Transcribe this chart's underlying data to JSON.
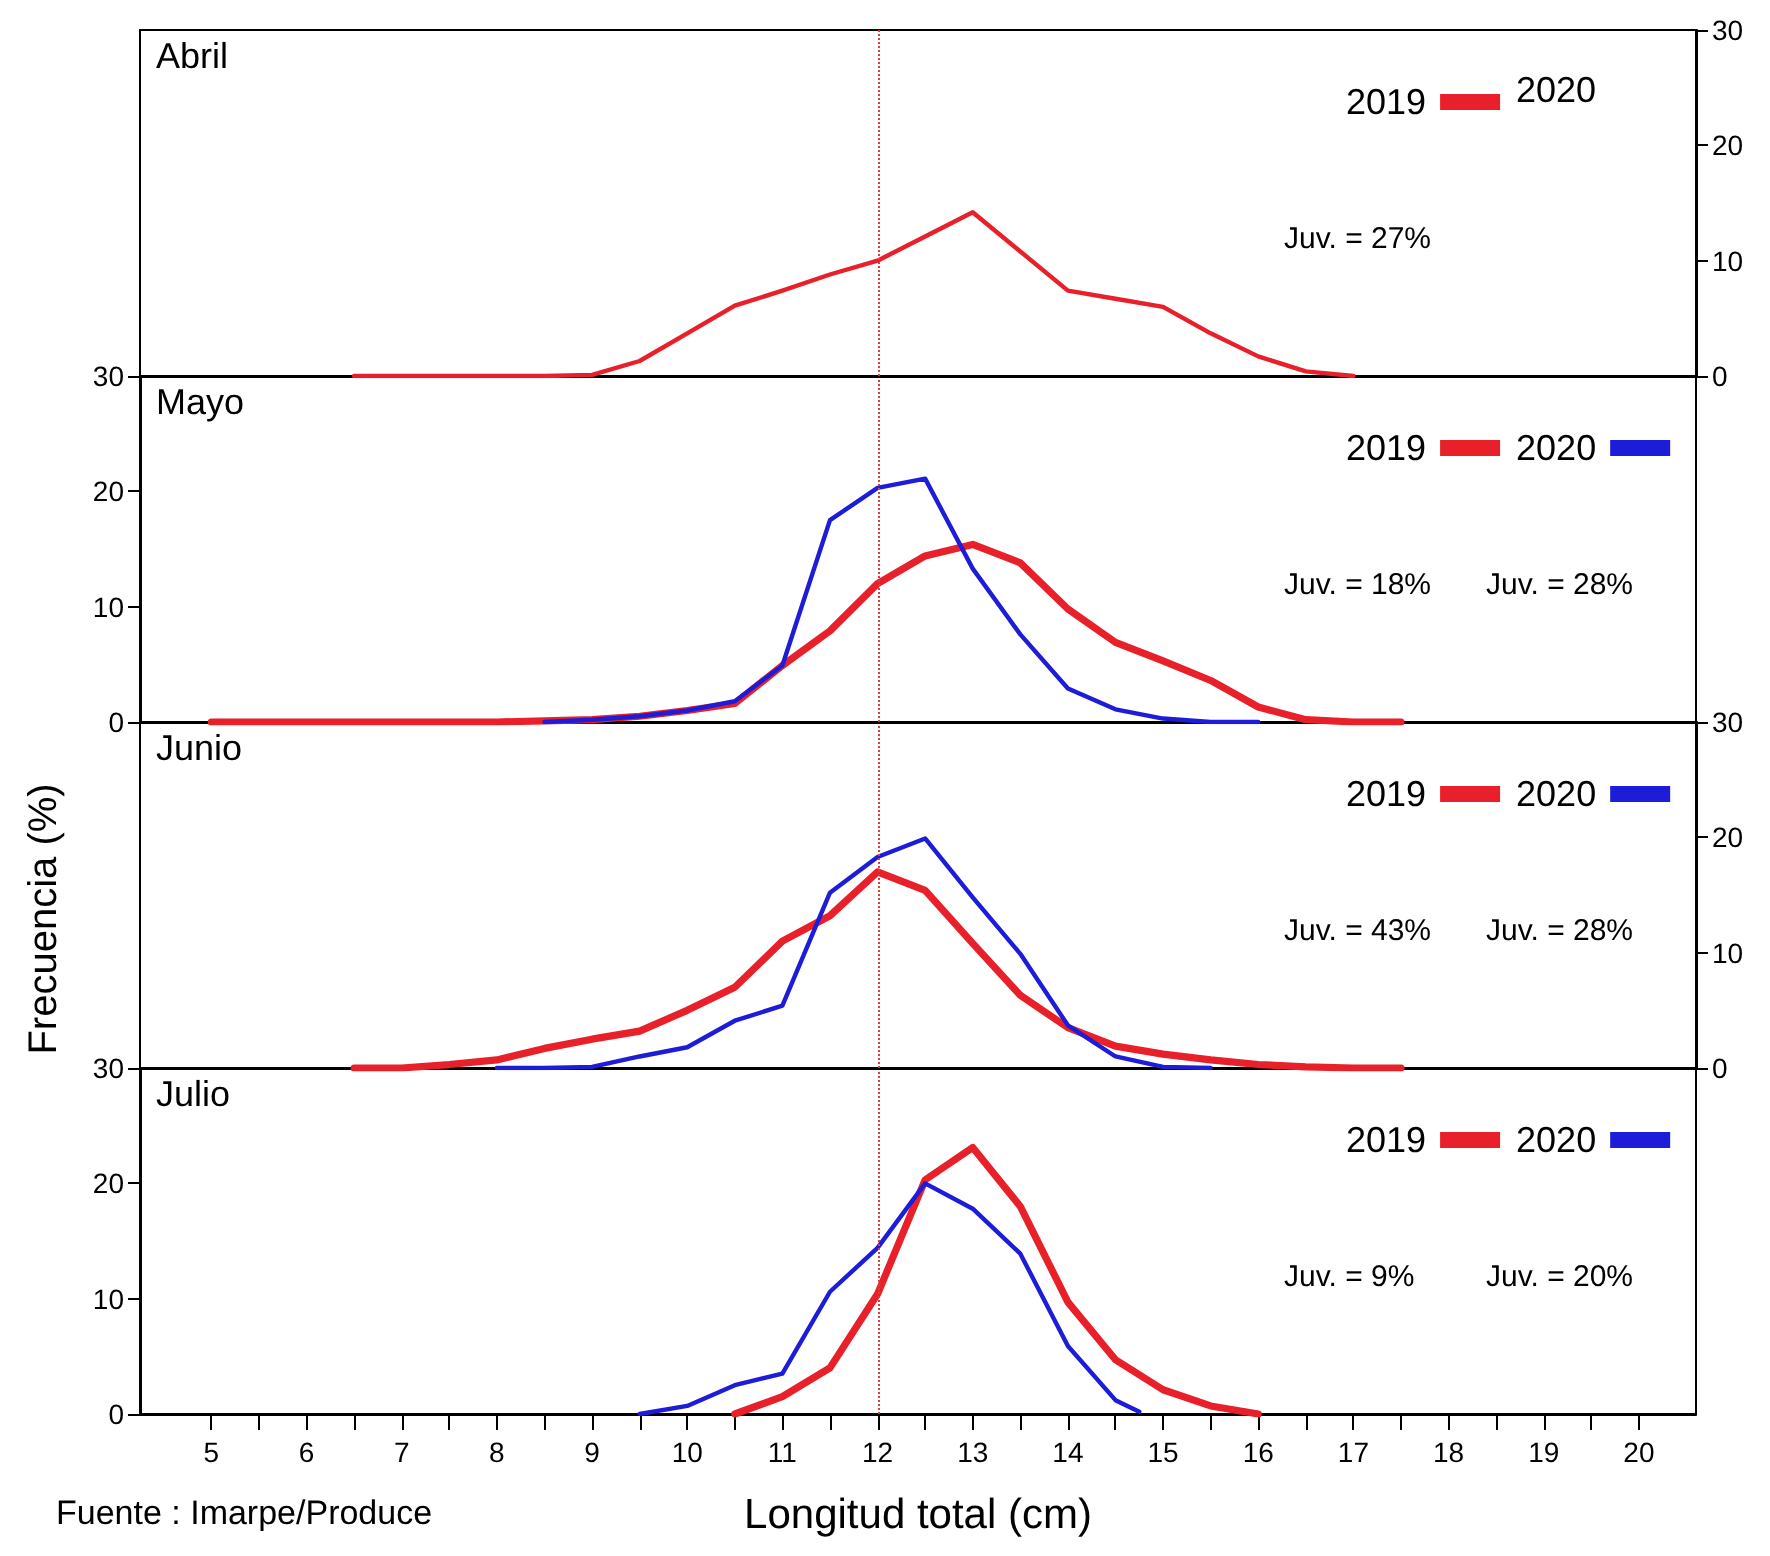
{
  "chart_data": [
    {
      "type": "line",
      "title": "Abril",
      "xlim": [
        4.25,
        20.6
      ],
      "ylim": [
        0,
        30
      ],
      "yticks": [
        0,
        10,
        20,
        30
      ],
      "tick_labels": "y",
      "grid": false,
      "legend": "top right",
      "marker": "none",
      "line_style": "solid",
      "series": [
        {
          "name": "2019",
          "color": "#e8202a",
          "x": [
            6.5,
            7,
            7.5,
            8,
            8.5,
            9,
            9.5,
            10,
            10.5,
            11,
            11.5,
            12,
            12.5,
            13,
            13.5,
            14,
            14.5,
            15,
            15.5,
            16,
            16.5,
            17
          ],
          "values": [
            0,
            0,
            0,
            0,
            0,
            0.1,
            1.3,
            3.7,
            6.1,
            7.4,
            8.8,
            10.0,
            12.1,
            14.2,
            10.8,
            7.4,
            6.7,
            6.0,
            3.7,
            1.7,
            0.4,
            0
          ]
        }
      ],
      "ref_lines": [
        {
          "axis": "x",
          "value": 12,
          "color": "#e03a3a",
          "line_style": "dotted"
        }
      ],
      "annotations": [
        "Juv. = 27%",
        "2020"
      ]
    },
    {
      "type": "line",
      "title": "Mayo",
      "xlim": [
        4.25,
        20.6
      ],
      "ylim": [
        0,
        30
      ],
      "yticks": [
        0,
        10,
        20,
        30
      ],
      "tick_labels": "y",
      "grid": false,
      "legend": "top right",
      "marker": "none",
      "line_style": "solid",
      "series": [
        {
          "name": "2019",
          "color": "#e8202a",
          "x": [
            5,
            5.5,
            6,
            6.5,
            7,
            7.5,
            8,
            8.5,
            9,
            9.5,
            10,
            10.5,
            11,
            11.5,
            12,
            12.5,
            13,
            13.5,
            14,
            14.5,
            15,
            15.5,
            16,
            16.5,
            17,
            17.5
          ],
          "values": [
            0,
            0,
            0,
            0,
            0,
            0,
            0,
            0.1,
            0.2,
            0.5,
            1.0,
            1.6,
            4.9,
            7.9,
            12.0,
            14.4,
            15.4,
            13.8,
            9.8,
            6.9,
            5.3,
            3.6,
            1.3,
            0.2,
            0,
            0
          ]
        },
        {
          "name": "2020",
          "color": "#1c1cd9",
          "x": [
            8.5,
            9,
            9.5,
            10,
            10.5,
            11,
            11.5,
            12,
            12.5,
            13,
            13.5,
            14,
            14.5,
            15,
            15.5,
            16
          ],
          "values": [
            0,
            0.2,
            0.5,
            1.0,
            1.8,
            4.9,
            17.5,
            20.3,
            21.1,
            13.3,
            7.6,
            2.9,
            1.1,
            0.3,
            0,
            0
          ]
        }
      ],
      "ref_lines": [
        {
          "axis": "x",
          "value": 12,
          "color": "#e03a3a",
          "line_style": "dotted"
        }
      ],
      "annotations": [
        "Juv. = 18%",
        "Juv. = 28%"
      ]
    },
    {
      "type": "line",
      "title": "Junio",
      "ylabel": "Frecuencia (%)",
      "xlim": [
        4.25,
        20.6
      ],
      "ylim": [
        0,
        30
      ],
      "yticks": [
        0,
        10,
        20,
        30
      ],
      "tick_labels": "y",
      "grid": false,
      "legend": "top right",
      "marker": "none",
      "line_style": "solid",
      "series": [
        {
          "name": "2019",
          "color": "#e8202a",
          "x": [
            6.5,
            7,
            7.5,
            8,
            8.5,
            9,
            9.5,
            10,
            10.5,
            11,
            11.5,
            12,
            12.5,
            13,
            13.5,
            14,
            14.5,
            15,
            15.5,
            16,
            16.5,
            17,
            17.5
          ],
          "values": [
            0,
            0,
            0.3,
            0.7,
            1.7,
            2.5,
            3.2,
            5.0,
            7.0,
            11.0,
            13.2,
            17.0,
            15.4,
            10.8,
            6.3,
            3.5,
            1.9,
            1.2,
            0.7,
            0.3,
            0.1,
            0,
            0
          ]
        },
        {
          "name": "2020",
          "color": "#1c1cd9",
          "x": [
            8,
            8.5,
            9,
            9.5,
            10,
            10.5,
            11,
            11.5,
            12,
            12.5,
            13,
            13.5,
            14,
            14.5,
            15,
            15.5
          ],
          "values": [
            0,
            0,
            0.1,
            1.0,
            1.8,
            4.1,
            5.4,
            15.2,
            18.3,
            19.9,
            14.8,
            9.9,
            3.7,
            1.0,
            0.1,
            0
          ]
        }
      ],
      "ref_lines": [
        {
          "axis": "x",
          "value": 12,
          "color": "#e03a3a",
          "line_style": "dotted"
        }
      ],
      "annotations": [
        "Juv. = 43%",
        "Juv. = 28%"
      ]
    },
    {
      "type": "line",
      "title": "Julio",
      "xlabel": "Longitud total (cm)",
      "xlim": [
        4.25,
        20.6
      ],
      "ylim": [
        0,
        30
      ],
      "yticks": [
        0,
        10,
        20,
        30
      ],
      "xticks": [
        5,
        {
          "value": 5.5,
          "label": null
        },
        6,
        {
          "value": 6.5,
          "label": null
        },
        7,
        {
          "value": 7.5,
          "label": null
        },
        8,
        {
          "value": 8.5,
          "label": null
        },
        9,
        {
          "value": 9.5,
          "label": null
        },
        10,
        {
          "value": 10.5,
          "label": null
        },
        11,
        {
          "value": 11.5,
          "label": null
        },
        12,
        {
          "value": 12.5,
          "label": null
        },
        13,
        {
          "value": 13.5,
          "label": null
        },
        14,
        {
          "value": 14.5,
          "label": null
        },
        15,
        {
          "value": 15.5,
          "label": null
        },
        16,
        {
          "value": 16.5,
          "label": null
        },
        17,
        {
          "value": 17.5,
          "label": null
        },
        18,
        {
          "value": 18.5,
          "label": null
        },
        19,
        {
          "value": 19.5,
          "label": null
        },
        20
      ],
      "grid": false,
      "legend": "top right",
      "marker": "none",
      "line_style": "solid",
      "series": [
        {
          "name": "2019",
          "color": "#e8202a",
          "x": [
            10.5,
            11,
            11.5,
            12,
            12.5,
            13,
            13.5,
            14,
            14.5,
            15,
            15.5,
            16
          ],
          "values": [
            0,
            1.5,
            4.0,
            10.4,
            20.3,
            23.1,
            18.0,
            9.7,
            4.7,
            2.1,
            0.7,
            0
          ]
        },
        {
          "name": "2020",
          "color": "#1c1cd9",
          "x": [
            9.5,
            10,
            10.5,
            11,
            11.5,
            12,
            12.5,
            13,
            13.5,
            14,
            14.5,
            14.75
          ],
          "values": [
            0,
            0.7,
            2.5,
            3.5,
            10.6,
            14.4,
            20.0,
            17.8,
            13.9,
            5.9,
            1.2,
            0.2
          ]
        }
      ],
      "ref_lines": [
        {
          "axis": "x",
          "value": 12,
          "color": "#e03a3a",
          "line_style": "dotted"
        }
      ],
      "annotations": [
        "Juv. = 9%",
        "Juv. = 20%",
        "Fuente : Imarpe/Produce"
      ]
    }
  ]
}
